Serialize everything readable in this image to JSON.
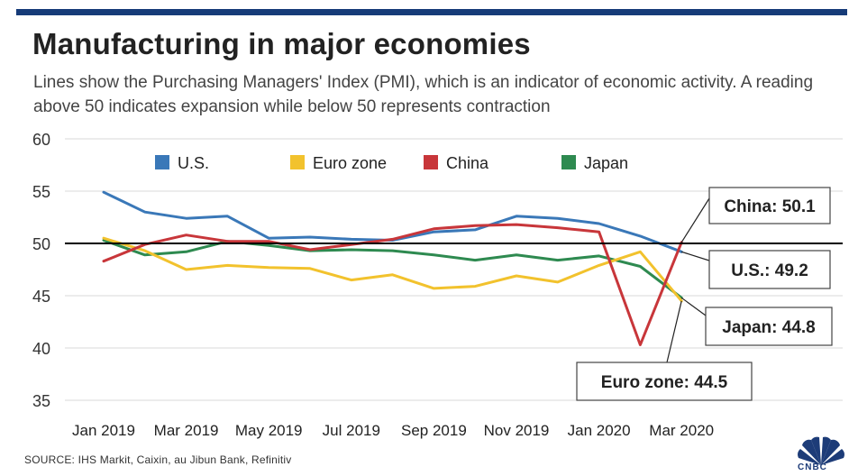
{
  "header": {
    "title": "Manufacturing in major economies",
    "subtitle": "Lines show the Purchasing Managers' Index (PMI), which is an indicator of economic activity. A reading above 50 indicates expansion while below 50 represents contraction"
  },
  "footer": {
    "source": "SOURCE: IHS Markit, Caixin, au Jibun Bank, Refinitiv",
    "logo_text": "CNBC"
  },
  "chart_data": {
    "type": "line",
    "ylim": [
      35,
      60
    ],
    "yticks": [
      35,
      40,
      45,
      50,
      55,
      60
    ],
    "reference_line": 50,
    "grid": "horizontal",
    "legend_placement": "top",
    "x": [
      "Jan 2019",
      "Feb 2019",
      "Mar 2019",
      "Apr 2019",
      "May 2019",
      "Jun 2019",
      "Jul 2019",
      "Aug 2019",
      "Sep 2019",
      "Oct 2019",
      "Nov 2019",
      "Dec 2019",
      "Jan 2020",
      "Feb 2020",
      "Mar 2020"
    ],
    "xtick_labels": [
      "Jan 2019",
      "Mar 2019",
      "May 2019",
      "Jul 2019",
      "Sep 2019",
      "Nov 2019",
      "Jan 2020",
      "Mar 2020"
    ],
    "xtick_positions": [
      "Jan 2019",
      "Mar 2019",
      "May 2019",
      "Jul 2019",
      "Sep 2019",
      "Nov 2019",
      "Jan 2020",
      "Mar 2020"
    ],
    "series": [
      {
        "name": "U.S.",
        "color": "#3a78b8",
        "values": [
          54.9,
          53.0,
          52.4,
          52.6,
          50.5,
          50.6,
          50.4,
          50.3,
          51.1,
          51.3,
          52.6,
          52.4,
          51.9,
          50.7,
          49.2
        ]
      },
      {
        "name": "Euro zone",
        "color": "#f2c22d",
        "values": [
          50.5,
          49.3,
          47.5,
          47.9,
          47.7,
          47.6,
          46.5,
          47.0,
          45.7,
          45.9,
          46.9,
          46.3,
          47.9,
          49.2,
          44.5
        ]
      },
      {
        "name": "China",
        "color": "#c8363a",
        "values": [
          48.3,
          49.9,
          50.8,
          50.2,
          50.2,
          49.4,
          49.9,
          50.4,
          51.4,
          51.7,
          51.8,
          51.5,
          51.1,
          40.3,
          50.1
        ]
      },
      {
        "name": "Japan",
        "color": "#2e8a50",
        "values": [
          50.3,
          48.9,
          49.2,
          50.2,
          49.8,
          49.3,
          49.4,
          49.3,
          48.9,
          48.4,
          48.9,
          48.4,
          48.8,
          47.8,
          44.8
        ]
      }
    ],
    "annotations": [
      {
        "text": "China: 50.1",
        "series": "China"
      },
      {
        "text": "U.S.: 49.2",
        "series": "U.S."
      },
      {
        "text": "Japan: 44.8",
        "series": "Japan"
      },
      {
        "text": "Euro zone: 44.5",
        "series": "Euro zone"
      }
    ]
  }
}
